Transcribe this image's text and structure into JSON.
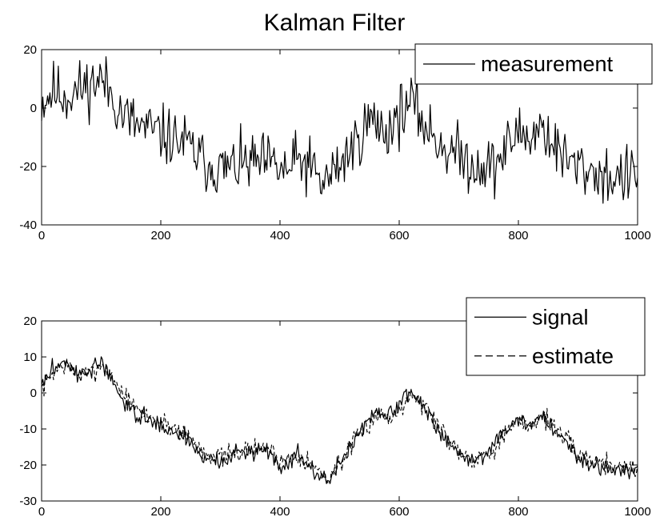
{
  "chart_data": [
    {
      "type": "line",
      "title": "Kalman Filter",
      "xlim": [
        0,
        1000
      ],
      "ylim": [
        -40,
        20
      ],
      "xticks": [
        "0",
        "200",
        "400",
        "600",
        "800",
        "1000"
      ],
      "yticks": [
        "20",
        "0",
        "-20",
        "-40"
      ],
      "legend_placement": "top-right",
      "series": [
        {
          "name": "measurement",
          "style": "solid",
          "color": "#000000",
          "noise": 5,
          "seed": 11,
          "x": [
            0,
            20,
            40,
            70,
            100,
            120,
            135,
            160,
            200,
            240,
            270,
            300,
            350,
            380,
            410,
            430,
            450,
            470,
            490,
            520,
            550,
            580,
            600,
            620,
            650,
            680,
            700,
            720,
            760,
            780,
            800,
            820,
            840,
            860,
            880,
            900,
            930,
            960,
            1000
          ],
          "y": [
            2,
            6,
            4,
            7,
            10,
            4,
            -2,
            -6,
            -9,
            -12,
            -18,
            -21,
            -19,
            -19,
            -22,
            -18,
            -20,
            -26,
            -22,
            -14,
            -4,
            -8,
            -2,
            2,
            -8,
            -14,
            -16,
            -19,
            -20,
            -14,
            -8,
            -10,
            -6,
            -13,
            -18,
            -20,
            -22,
            -24,
            -23
          ]
        }
      ]
    },
    {
      "type": "line",
      "xlim": [
        0,
        1000
      ],
      "ylim": [
        -30,
        20
      ],
      "xticks": [
        "0",
        "200",
        "400",
        "600",
        "800",
        "1000"
      ],
      "yticks": [
        "20",
        "10",
        "0",
        "-10",
        "-20",
        "-30"
      ],
      "legend_placement": "top-right",
      "series": [
        {
          "name": "signal",
          "style": "solid",
          "color": "#000000",
          "noise": 1.2,
          "seed": 3,
          "x": [
            0,
            20,
            40,
            60,
            80,
            100,
            120,
            140,
            160,
            200,
            240,
            270,
            300,
            340,
            380,
            400,
            430,
            460,
            480,
            520,
            560,
            590,
            600,
            620,
            650,
            680,
            700,
            720,
            750,
            770,
            800,
            820,
            840,
            870,
            900,
            930,
            960,
            1000
          ],
          "y": [
            2,
            7,
            9,
            5,
            6,
            9,
            2,
            -3,
            -6,
            -9,
            -12,
            -18,
            -19,
            -16,
            -16,
            -20,
            -17,
            -22,
            -25,
            -14,
            -5,
            -6,
            -3,
            1,
            -6,
            -13,
            -17,
            -19,
            -16,
            -12,
            -7,
            -9,
            -6,
            -12,
            -18,
            -20,
            -21,
            -22
          ]
        },
        {
          "name": "estimate",
          "style": "dashed",
          "color": "#000000",
          "noise": 1.4,
          "seed": 7,
          "x": [
            0,
            20,
            40,
            60,
            80,
            100,
            120,
            140,
            160,
            200,
            240,
            270,
            300,
            340,
            380,
            400,
            430,
            460,
            480,
            520,
            560,
            590,
            600,
            620,
            650,
            680,
            700,
            720,
            750,
            770,
            800,
            820,
            840,
            870,
            900,
            930,
            960,
            1000
          ],
          "y": [
            1,
            6,
            8,
            5,
            5,
            8,
            4,
            -1,
            -5,
            -8,
            -11,
            -16,
            -18,
            -16,
            -15,
            -19,
            -17,
            -21,
            -24,
            -15,
            -6,
            -7,
            -4,
            0,
            -5,
            -12,
            -16,
            -18,
            -17,
            -13,
            -8,
            -9,
            -6,
            -11,
            -17,
            -19,
            -20,
            -21
          ]
        }
      ]
    }
  ]
}
